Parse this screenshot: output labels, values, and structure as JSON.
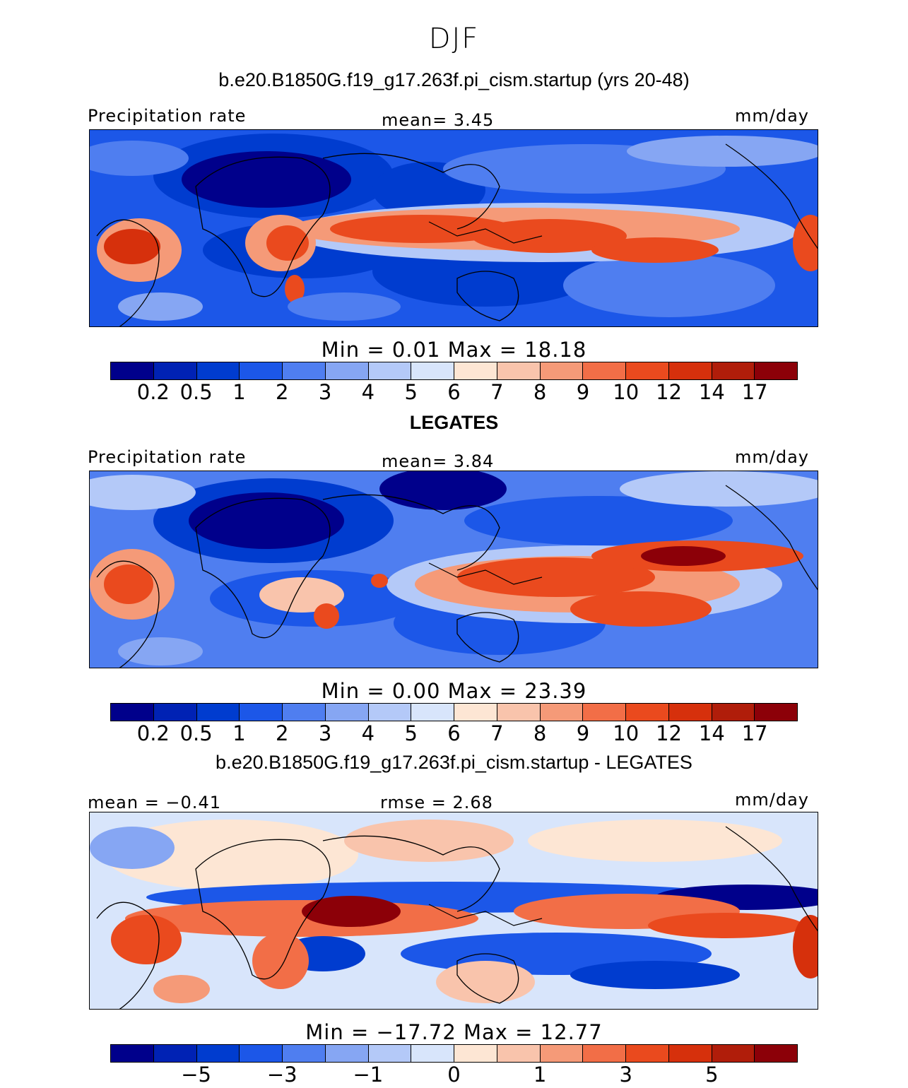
{
  "figure": {
    "season": "DJF",
    "case_title": "b.e20.B1850G.f19_g17.263f.pi_cism.startup (yrs 20-48)",
    "obs_title": "LEGATES",
    "diff_title": "b.e20.B1850G.f19_g17.263f.pi_cism.startup - LEGATES"
  },
  "colors": {
    "abs_palette": [
      "#00008b",
      "#0022b4",
      "#003ccf",
      "#1c57e8",
      "#4f7ef0",
      "#86a6f3",
      "#b4c9f8",
      "#d8e5fb",
      "#fde6d4",
      "#f9c4ac",
      "#f59a78",
      "#f26e47",
      "#ea4a1e",
      "#d6300c",
      "#b01d0a",
      "#8c0008"
    ],
    "diff_palette": [
      "#00008b",
      "#0022b4",
      "#003ccf",
      "#1c57e8",
      "#4f7ef0",
      "#86a6f3",
      "#b4c9f8",
      "#d8e5fb",
      "#fde6d4",
      "#f9c4ac",
      "#f59a78",
      "#f26e47",
      "#ea4a1e",
      "#d6300c",
      "#b01d0a",
      "#8c0008"
    ]
  },
  "chart_data": [
    {
      "type": "heatmap",
      "title": "b.e20.B1850G.f19_g17.263f.pi_cism.startup (yrs 20-48)",
      "left_label": "Precipitation rate",
      "center_label": "mean=    3.45",
      "units": "mm/day",
      "minmax": "Min  =     0.01  Max  =   18.18",
      "mean": 3.45,
      "min": 0.01,
      "max": 18.18,
      "levels": [
        "0.2",
        "0.5",
        "1",
        "2",
        "3",
        "4",
        "5",
        "6",
        "7",
        "8",
        "9",
        "10",
        "12",
        "14",
        "17"
      ]
    },
    {
      "type": "heatmap",
      "title": "LEGATES",
      "left_label": "Precipitation rate",
      "center_label": "mean=    3.84",
      "units": "mm/day",
      "minmax": "Min  =     0.00  Max  =   23.39",
      "mean": 3.84,
      "min": 0.0,
      "max": 23.39,
      "levels": [
        "0.2",
        "0.5",
        "1",
        "2",
        "3",
        "4",
        "5",
        "6",
        "7",
        "8",
        "9",
        "10",
        "12",
        "14",
        "17"
      ]
    },
    {
      "type": "heatmap",
      "title": "b.e20.B1850G.f19_g17.263f.pi_cism.startup - LEGATES",
      "left_label": "mean  =   −0.41",
      "center_label": "rmse  =     2.68",
      "units": "mm/day",
      "minmax": "Min  =  −17.72  Max  =    12.77",
      "mean": -0.41,
      "rmse": 2.68,
      "min": -17.72,
      "max": 12.77,
      "tick_labels": [
        "−5",
        "−3",
        "−1",
        "0",
        "1",
        "3",
        "5"
      ]
    }
  ]
}
